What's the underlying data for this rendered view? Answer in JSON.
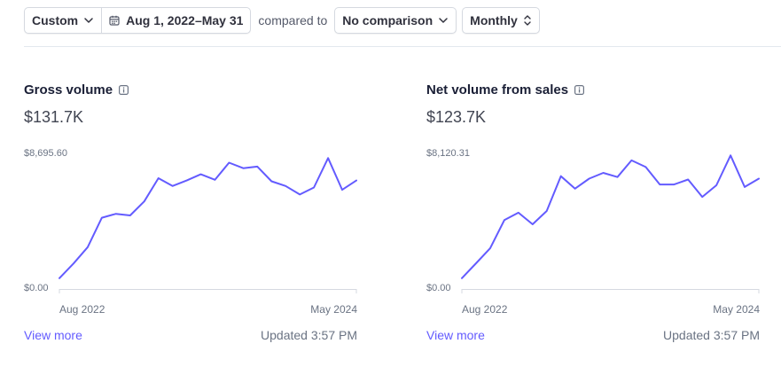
{
  "filters": {
    "range_preset": "Custom",
    "date_range": "Aug 1, 2022–May 31",
    "compared_label": "compared to",
    "comparison": "No comparison",
    "interval": "Monthly"
  },
  "icons": {
    "chevron": "chevron-down-icon",
    "calendar": "calendar-icon",
    "updown": "chevron-up-down-icon",
    "info": "info-icon"
  },
  "colors": {
    "line": "#635bff",
    "link": "#635bff"
  },
  "cards": [
    {
      "title": "Gross volume",
      "total": "$131.7K",
      "y_max_label": "$8,695.60",
      "y_min_label": "$0.00",
      "x_start_label": "Aug 2022",
      "x_end_label": "May 2024",
      "view_more": "View more",
      "updated": "Updated 3:57 PM"
    },
    {
      "title": "Net volume from sales",
      "total": "$123.7K",
      "y_max_label": "$8,120.31",
      "y_min_label": "$0.00",
      "x_start_label": "Aug 2022",
      "x_end_label": "May 2024",
      "view_more": "View more",
      "updated": "Updated 3:57 PM"
    }
  ],
  "chart_data": [
    {
      "type": "line",
      "title": "Gross volume",
      "x": [
        "Aug 2022",
        "Sep 2022",
        "Oct 2022",
        "Nov 2022",
        "Dec 2022",
        "Jan 2023",
        "Feb 2023",
        "Mar 2023",
        "Apr 2023",
        "May 2023",
        "Jun 2023",
        "Jul 2023",
        "Aug 2023",
        "Sep 2023",
        "Oct 2023",
        "Nov 2023",
        "Dec 2023",
        "Jan 2024",
        "Feb 2024",
        "Mar 2024",
        "Apr 2024",
        "May 2024"
      ],
      "values": [
        700,
        1650,
        2700,
        4600,
        4850,
        4750,
        5650,
        7150,
        6650,
        7000,
        7400,
        7050,
        8150,
        7800,
        7900,
        6950,
        6650,
        6100,
        6550,
        8450,
        6400,
        7000
      ],
      "ylim": [
        0,
        8695.6
      ]
    },
    {
      "type": "line",
      "title": "Net volume from sales",
      "x": [
        "Aug 2022",
        "Sep 2022",
        "Oct 2022",
        "Nov 2022",
        "Dec 2022",
        "Jan 2023",
        "Feb 2023",
        "Mar 2023",
        "Apr 2023",
        "May 2023",
        "Jun 2023",
        "Jul 2023",
        "Aug 2023",
        "Sep 2023",
        "Oct 2023",
        "Nov 2023",
        "Dec 2023",
        "Jan 2024",
        "Feb 2024",
        "Mar 2024",
        "Apr 2024",
        "May 2024"
      ],
      "values": [
        650,
        1550,
        2450,
        4150,
        4600,
        3900,
        4700,
        6800,
        6050,
        6650,
        7000,
        6750,
        7750,
        7350,
        6300,
        6300,
        6600,
        5550,
        6250,
        8050,
        6150,
        6650
      ],
      "ylim": [
        0,
        8120.31
      ]
    }
  ]
}
